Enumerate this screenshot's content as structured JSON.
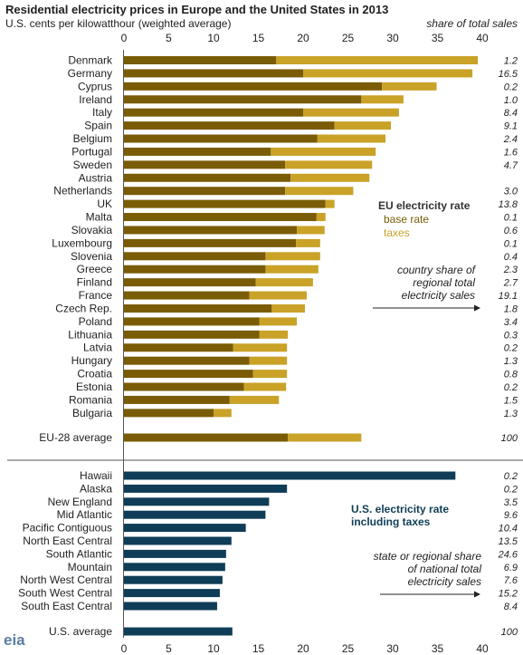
{
  "title": "Residential electricity prices in Europe and the United States in 2013",
  "units_label": "U.S. cents per kilowatthour (weighted average)",
  "share_header": "share of total sales",
  "logo_text": "eia",
  "colors": {
    "base": "#7a5c06",
    "taxes": "#c9a227",
    "us": "#0f3d57"
  },
  "chart_data": [
    {
      "type": "bar",
      "orientation": "horizontal",
      "stacked": true,
      "xlim": [
        0,
        40
      ],
      "x_ticks": [
        "0",
        "5",
        "10",
        "15",
        "20",
        "25",
        "30",
        "35",
        "40"
      ],
      "legend": {
        "title": "EU electricity rate",
        "items": [
          "base rate",
          "taxes"
        ],
        "note": [
          "country share of",
          "regional total",
          "electricity sales"
        ]
      },
      "categories": [
        "Denmark",
        "Germany",
        "Cyprus",
        "Ireland",
        "Italy",
        "Spain",
        "Belgium",
        "Portugal",
        "Sweden",
        "Austria",
        "Netherlands",
        "UK",
        "Malta",
        "Slovakia",
        "Luxembourg",
        "Slovenia",
        "Greece",
        "Finland",
        "France",
        "Czech Rep.",
        "Poland",
        "Lithuania",
        "Latvia",
        "Hungary",
        "Croatia",
        "Estonia",
        "Romania",
        "Bulgaria",
        "EU-28 average"
      ],
      "series": [
        {
          "name": "base rate",
          "values": [
            17.0,
            20.0,
            28.8,
            26.5,
            20.0,
            23.5,
            21.6,
            16.4,
            18.0,
            18.6,
            18.0,
            22.5,
            21.5,
            19.3,
            19.2,
            15.8,
            15.8,
            14.7,
            14.0,
            16.5,
            15.1,
            15.1,
            12.2,
            14.0,
            14.4,
            13.4,
            11.8,
            10.0,
            18.3
          ]
        },
        {
          "name": "taxes",
          "values": [
            22.5,
            18.9,
            6.1,
            4.7,
            10.7,
            6.3,
            7.6,
            11.7,
            9.7,
            8.8,
            7.6,
            1.0,
            1.0,
            3.1,
            2.7,
            6.1,
            5.9,
            6.4,
            6.4,
            3.7,
            4.2,
            3.2,
            6.0,
            4.2,
            3.8,
            4.7,
            5.5,
            2.0,
            8.2
          ]
        }
      ],
      "share_of_sales": [
        "1.2",
        "16.5",
        "0.2",
        "1.0",
        "8.4",
        "9.1",
        "2.4",
        "1.6",
        "4.7",
        "",
        "3.0",
        "13.8",
        "0.1",
        "0.6",
        "0.1",
        "0.4",
        "2.3",
        "2.7",
        "19.1",
        "1.8",
        "3.4",
        "0.3",
        "0.2",
        "1.3",
        "0.8",
        "0.2",
        "1.5",
        "1.3",
        "100"
      ]
    },
    {
      "type": "bar",
      "orientation": "horizontal",
      "xlim": [
        0,
        40
      ],
      "x_ticks": [
        "0",
        "5",
        "10",
        "15",
        "20",
        "25",
        "30",
        "35",
        "40"
      ],
      "legend": {
        "title": [
          "U.S. electricity rate",
          "including taxes"
        ],
        "note": [
          "state or regional share",
          "of national total",
          "electricity sales"
        ]
      },
      "categories": [
        "Hawaii",
        "Alaska",
        "New England",
        "Mid Atlantic",
        "Pacific Contiguous",
        "North East Central",
        "South Atlantic",
        "Mountain",
        "North West Central",
        "South West Central",
        "South East Central",
        "U.S. average"
      ],
      "series": [
        {
          "name": "U.S. electricity rate including taxes",
          "values": [
            37.0,
            18.2,
            16.2,
            15.8,
            13.6,
            12.0,
            11.4,
            11.3,
            11.0,
            10.7,
            10.4,
            12.1
          ]
        }
      ],
      "share_of_sales": [
        "0.2",
        "0.2",
        "3.5",
        "9.6",
        "10.4",
        "13.5",
        "24.6",
        "6.9",
        "7.6",
        "15.2",
        "8.4",
        "100"
      ]
    }
  ]
}
